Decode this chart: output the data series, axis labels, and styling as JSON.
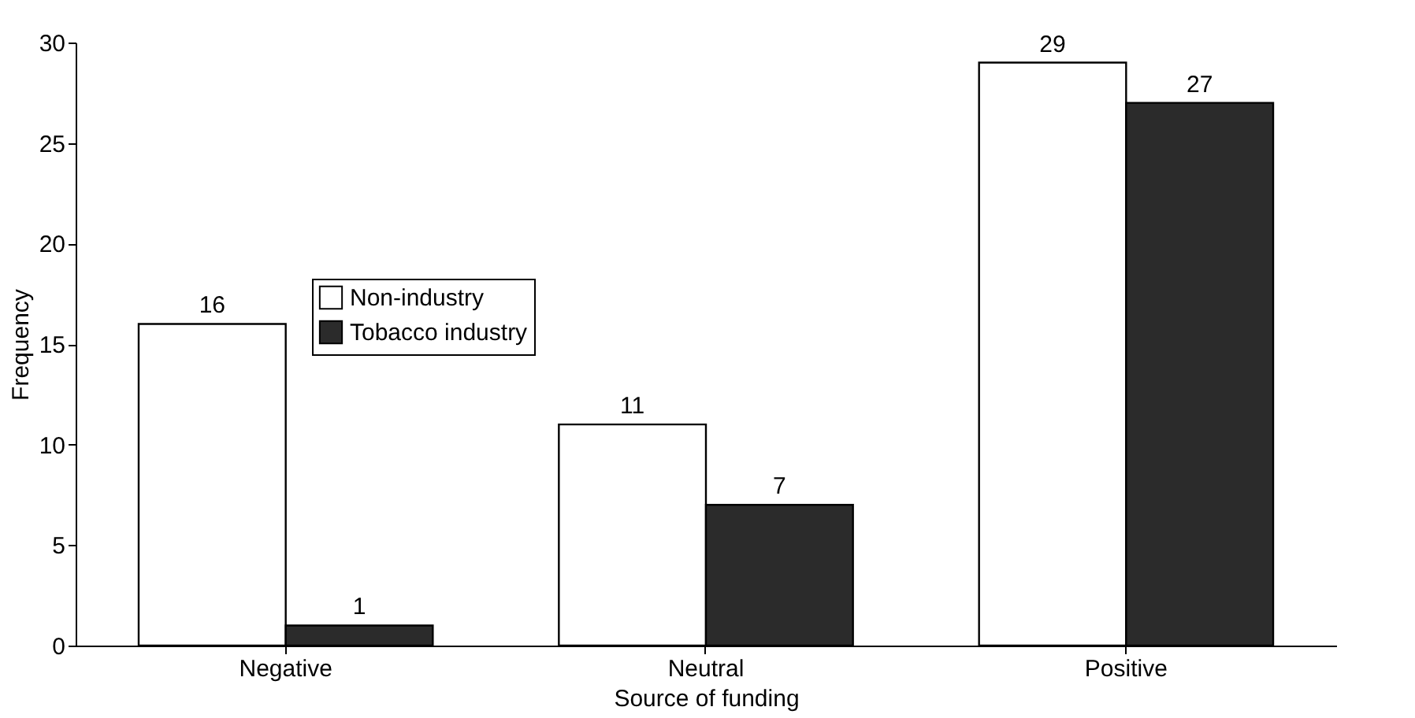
{
  "chart_data": {
    "type": "bar",
    "xlabel": "Source of funding",
    "ylabel": "Frequency",
    "categories": [
      "Negative",
      "Neutral",
      "Positive"
    ],
    "series": [
      {
        "name": "Non-industry",
        "color": "#ffffff",
        "values": [
          16,
          11,
          29
        ]
      },
      {
        "name": "Tobacco industry",
        "color": "#2b2b2b",
        "values": [
          1,
          7,
          27
        ]
      }
    ],
    "ylim": [
      0,
      30
    ],
    "yticks": [
      0,
      5,
      10,
      15,
      20,
      25,
      30
    ],
    "grid": false,
    "legend": "top left",
    "data_labels": true
  }
}
